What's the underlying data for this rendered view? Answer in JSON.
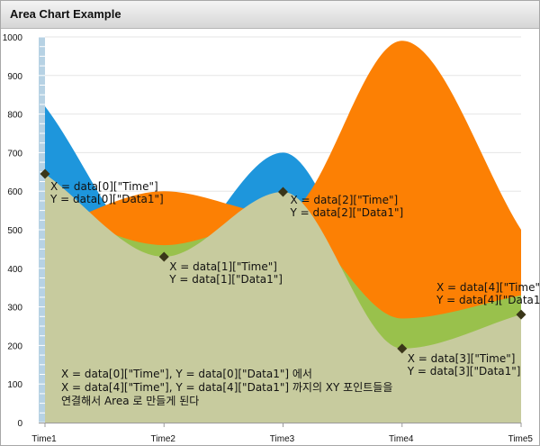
{
  "window": {
    "title": "Area Chart Example"
  },
  "chart_data": {
    "type": "area",
    "title": "",
    "xlabel": "",
    "ylabel": "",
    "categories": [
      "Time1",
      "Time2",
      "Time3",
      "Time4",
      "Time5"
    ],
    "ylim": [
      0,
      1000
    ],
    "yticks": [
      0,
      100,
      200,
      300,
      400,
      500,
      600,
      700,
      800,
      900,
      1000
    ],
    "series": [
      {
        "color": "#1e96dc",
        "values": [
          820,
          420,
          700,
          250,
          300
        ]
      },
      {
        "color": "#fc8004",
        "values": [
          500,
          600,
          540,
          990,
          500
        ]
      },
      {
        "color": "#99c14c",
        "values": [
          560,
          460,
          530,
          270,
          330
        ]
      },
      {
        "color": "#c7cb9e",
        "values": [
          645,
          430,
          598,
          192,
          280
        ]
      }
    ],
    "marked_series": 3,
    "point_labels": [
      {
        "x_label": "X = data[0][\"Time\"]",
        "y_label": "Y = data[0][\"Data1\"]"
      },
      {
        "x_label": "X = data[1][\"Time\"]",
        "y_label": "Y = data[1][\"Data1\"]"
      },
      {
        "x_label": "X = data[2][\"Time\"]",
        "y_label": "Y = data[2][\"Data1\"]"
      },
      {
        "x_label": "X = data[3][\"Time\"]",
        "y_label": "Y = data[3][\"Data1\"]"
      },
      {
        "x_label": "X = data[4][\"Time\"]",
        "y_label": "Y = data[4][\"Data1\"]"
      }
    ],
    "annotation": [
      "X = data[0][\"Time\"], Y = data[0][\"Data1\"] 에서",
      "X = data[4][\"Time\"], Y = data[4][\"Data1\"] 까지의 XY 포인트들을",
      "연결해서 Area 로 만들게 된다"
    ],
    "grid": true,
    "legend": "none"
  }
}
